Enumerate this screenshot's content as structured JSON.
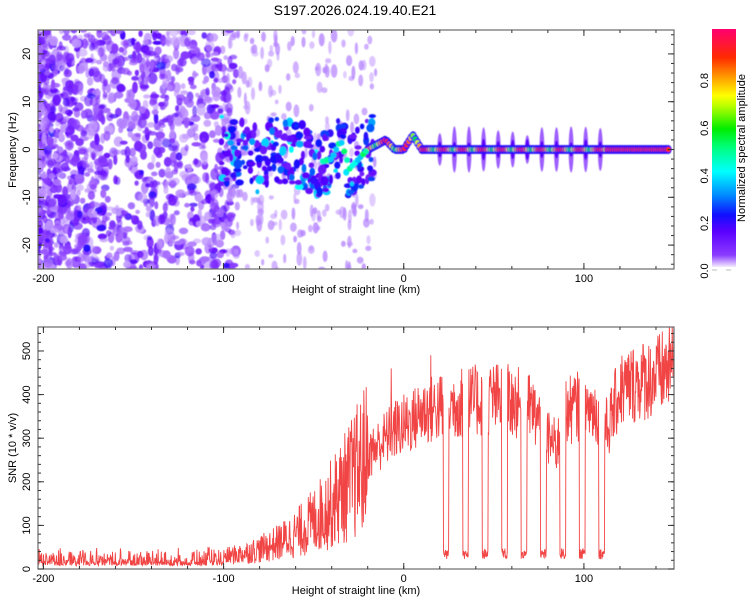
{
  "figure_title": "S197.2026.024.19.40.E21",
  "chart_data": [
    {
      "type": "heatmap",
      "name": "spectrogram",
      "title": "S197.2026.024.19.40.E21",
      "xlabel": "Height of straight line (km)",
      "ylabel": "Frequency (Hz)",
      "xlim": [
        -203,
        150
      ],
      "ylim": [
        -25,
        25
      ],
      "xticks": [
        -200,
        -100,
        0,
        100
      ],
      "xtick_labels": [
        "-200",
        "-100",
        "0",
        "100"
      ],
      "yticks": [
        -20,
        -10,
        0,
        10,
        20
      ],
      "ytick_labels": [
        "-20",
        "-10",
        "0",
        "10",
        "20"
      ],
      "grid": false,
      "colorbar": {
        "label": "Normalized spectral amplitude",
        "range": [
          0.0,
          1.0
        ],
        "ticks": [
          0.0,
          0.2,
          0.4,
          0.6,
          0.8
        ],
        "tick_labels": [
          "0.0",
          "0.2",
          "0.4",
          "0.6",
          "0.8"
        ],
        "colormap": "rainbow (white-violet-blue-cyan-green-yellow-red-pink)",
        "placement": "right"
      },
      "features": [
        {
          "description": "broadband noise speckle",
          "x_range": [
            -203,
            -95
          ],
          "freq_range": [
            -25,
            25
          ],
          "amplitude": 0.1
        },
        {
          "description": "scattered signal near 0 Hz",
          "x_range": [
            -100,
            -20
          ],
          "freq_range": [
            -10,
            5
          ],
          "amplitude": 0.3
        },
        {
          "description": "carrier tone with periodic gaps",
          "x_range": [
            -20,
            113
          ],
          "freq": 0,
          "amplitude": 0.75,
          "gap_period_km": 11.5
        },
        {
          "description": "steady carrier",
          "x_range": [
            113,
            148
          ],
          "freq": 0,
          "amplitude": 0.9
        }
      ],
      "carrier_track": {
        "x": [
          -100,
          -90,
          -80,
          -70,
          -60,
          -50,
          -40,
          -35,
          -30,
          -25,
          -20,
          -15,
          -10,
          -5,
          0,
          5,
          10,
          20,
          150
        ],
        "freq": [
          0,
          -1,
          -2,
          0,
          -1,
          -3,
          -2,
          2,
          -4,
          -2,
          0,
          1,
          2,
          0,
          0,
          3,
          0,
          0,
          0
        ]
      }
    },
    {
      "type": "line",
      "name": "snr",
      "xlabel": "Height of straight line (km)",
      "ylabel": "SNR (10 * v/v)",
      "xlim": [
        -203,
        150
      ],
      "ylim": [
        0,
        555
      ],
      "xticks": [
        -200,
        -100,
        0,
        100
      ],
      "xtick_labels": [
        "-200",
        "-100",
        "0",
        "100"
      ],
      "yticks": [
        0,
        100,
        200,
        300,
        400,
        500
      ],
      "ytick_labels": [
        "0",
        "100",
        "200",
        "300",
        "400",
        "500"
      ],
      "grid": false,
      "series": [
        {
          "name": "SNR",
          "color": "#f03030",
          "envelope_x": [
            -203,
            -150,
            -110,
            -100,
            -90,
            -80,
            -70,
            -60,
            -50,
            -40,
            -30,
            -20,
            -15,
            -10,
            -5,
            0,
            5,
            10,
            20,
            30,
            40,
            50,
            60,
            70,
            75,
            80,
            85,
            90,
            100,
            110,
            113,
            120,
            130,
            140,
            150
          ],
          "envelope_mean": [
            20,
            20,
            22,
            28,
            35,
            45,
            60,
            80,
            110,
            150,
            200,
            260,
            280,
            300,
            320,
            330,
            340,
            360,
            370,
            380,
            385,
            390,
            385,
            370,
            340,
            300,
            280,
            360,
            380,
            350,
            320,
            410,
            430,
            440,
            470
          ],
          "dropouts": {
            "x_start": 17,
            "x_end": 113,
            "period_km": 10.8,
            "floor": 30
          },
          "spikes": [
            {
              "x": -7,
              "y": 460
            },
            {
              "x": 15,
              "y": 490
            },
            {
              "x": 150,
              "y": 550
            }
          ]
        }
      ]
    }
  ]
}
